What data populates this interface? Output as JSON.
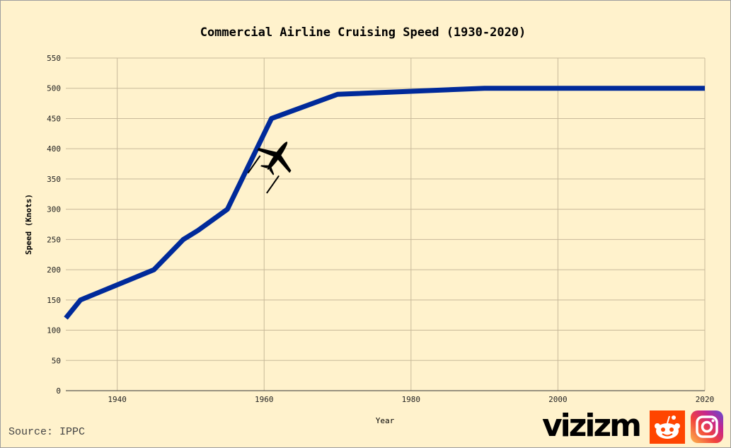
{
  "chart_data": {
    "type": "line",
    "title": "Commercial Airline Cruising Speed (1930-2020)",
    "xlabel": "Year",
    "ylabel": "Speed (Knots)",
    "xlim": [
      1933,
      2020
    ],
    "ylim": [
      0,
      550
    ],
    "xticks": [
      1940,
      1960,
      1980,
      2000,
      2020
    ],
    "yticks": [
      0,
      50,
      100,
      150,
      200,
      250,
      300,
      350,
      400,
      450,
      500,
      550
    ],
    "grid": true,
    "series": [
      {
        "color": "#002a9a",
        "x": [
          1933,
          1935,
          1945,
          1949,
          1951,
          1955,
          1961,
          1970,
          1990,
          2020
        ],
        "y": [
          120,
          150,
          200,
          250,
          265,
          300,
          450,
          490,
          500,
          500
        ]
      }
    ],
    "annotations": [
      "airplane-icon"
    ]
  },
  "footer": {
    "source": "Source: IPPC",
    "brand": "vizizm",
    "icons": [
      "reddit-icon",
      "instagram-icon"
    ]
  },
  "colors": {
    "background": "#fff2cc",
    "grid": "#c8b99a",
    "line": "#002a9a"
  }
}
